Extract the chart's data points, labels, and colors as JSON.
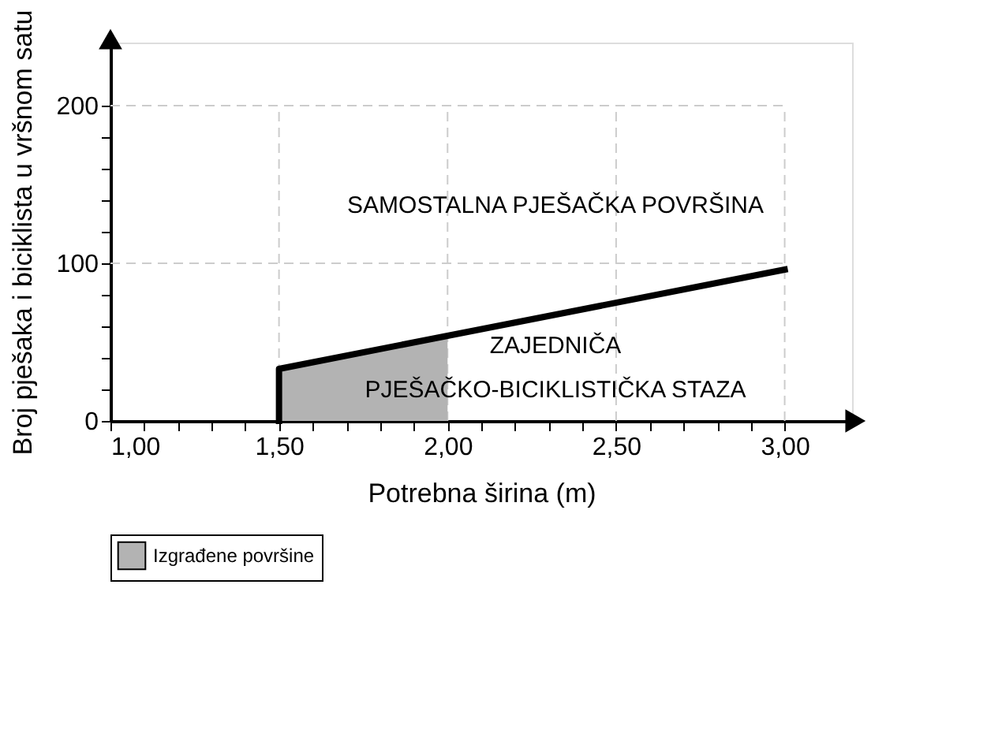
{
  "chart_data": {
    "type": "line",
    "xlabel": "Potrebna širina (m)",
    "ylabel": "Broj pješaka i biciklista u vršnom satu",
    "xlim": [
      1.0,
      3.2
    ],
    "ylim": [
      0,
      240
    ],
    "xticks": [
      {
        "value": 1.0,
        "label": "1,00"
      },
      {
        "value": 1.1,
        "label": null
      },
      {
        "value": 1.2,
        "label": null
      },
      {
        "value": 1.3,
        "label": null
      },
      {
        "value": 1.4,
        "label": null
      },
      {
        "value": 1.5,
        "label": "1,50"
      },
      {
        "value": 1.6,
        "label": null
      },
      {
        "value": 1.7,
        "label": null
      },
      {
        "value": 1.8,
        "label": null
      },
      {
        "value": 1.9,
        "label": null
      },
      {
        "value": 2.0,
        "label": "2,00"
      },
      {
        "value": 2.1,
        "label": null
      },
      {
        "value": 2.2,
        "label": null
      },
      {
        "value": 2.3,
        "label": null
      },
      {
        "value": 2.4,
        "label": null
      },
      {
        "value": 2.5,
        "label": "2,50"
      },
      {
        "value": 2.6,
        "label": null
      },
      {
        "value": 2.7,
        "label": null
      },
      {
        "value": 2.8,
        "label": null
      },
      {
        "value": 2.9,
        "label": null
      },
      {
        "value": 3.0,
        "label": "3,00"
      }
    ],
    "yticks": [
      0,
      {
        "value": 20,
        "label": null
      },
      {
        "value": 40,
        "label": null
      },
      {
        "value": 60,
        "label": null
      },
      {
        "value": 80,
        "label": null
      },
      100,
      {
        "value": 120,
        "label": null
      },
      {
        "value": 140,
        "label": null
      },
      {
        "value": 160,
        "label": null
      },
      {
        "value": 180,
        "label": null
      },
      200
    ],
    "grid": true,
    "legend": "bottom",
    "marker": "none",
    "line_style": "solid",
    "series": [
      {
        "type": "area",
        "name": "Izgrađene površine",
        "color": "#b3b3b3",
        "x": [
          1.5,
          2.0
        ],
        "values": [
          33,
          54
        ]
      },
      {
        "color": "#000000",
        "x": [
          1.5,
          1.5,
          3.0
        ],
        "values": [
          0,
          33,
          96
        ]
      }
    ],
    "annotations": [
      "SAMOSTALNA PJEŠAČKA POVRŠINA",
      "ZAJEDNIČA\nPJEŠAČKO-BICIKLISTIČKA STAZA"
    ]
  }
}
